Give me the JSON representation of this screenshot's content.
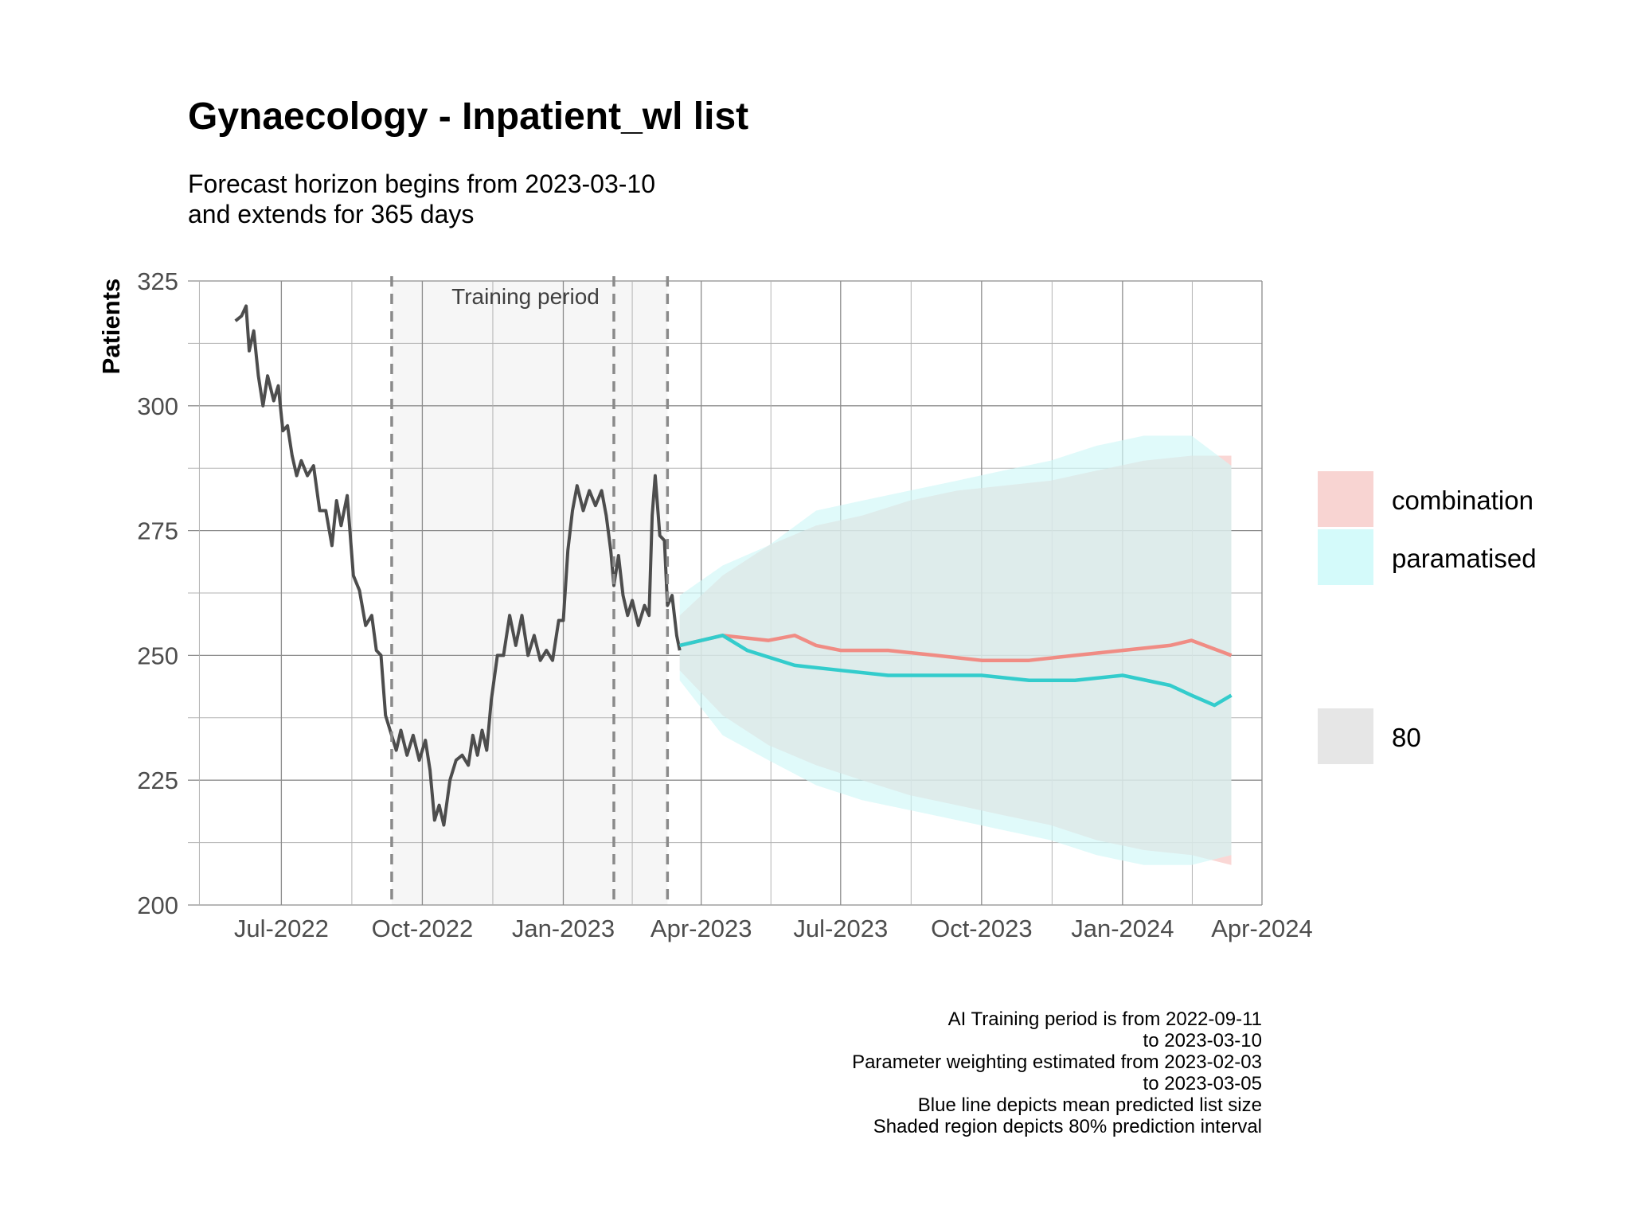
{
  "chart_data": {
    "type": "line",
    "title": "Gynaecology - Inpatient_wl list",
    "subtitle_lines": [
      "Forecast horizon begins from 2023-03-10",
      "and extends for 365 days"
    ],
    "xlabel": "",
    "ylabel": "Patients",
    "xlim": [
      "2022-05-01",
      "2024-04-01"
    ],
    "ylim": [
      200,
      325
    ],
    "y_ticks": [
      200,
      225,
      250,
      275,
      300,
      325
    ],
    "x_ticks": [
      {
        "date": "2022-07-01",
        "label": "Jul-2022"
      },
      {
        "date": "2022-10-01",
        "label": "Oct-2022"
      },
      {
        "date": "2023-01-01",
        "label": "Jan-2023"
      },
      {
        "date": "2023-04-01",
        "label": "Apr-2023"
      },
      {
        "date": "2023-07-01",
        "label": "Jul-2023"
      },
      {
        "date": "2023-10-01",
        "label": "Oct-2023"
      },
      {
        "date": "2024-01-01",
        "label": "Jan-2024"
      },
      {
        "date": "2024-04-01",
        "label": "Apr-2024"
      }
    ],
    "grid": true,
    "training_period": {
      "start": "2022-09-11",
      "end": "2023-03-10",
      "label": "Training period"
    },
    "vlines": [
      "2022-09-11",
      "2023-02-03",
      "2023-03-10"
    ],
    "series": [
      {
        "name": "observed",
        "role": "history",
        "color": "#4d4d4d",
        "points": [
          [
            "2022-06-01",
            317
          ],
          [
            "2022-06-05",
            318
          ],
          [
            "2022-06-08",
            320
          ],
          [
            "2022-06-10",
            311
          ],
          [
            "2022-06-13",
            315
          ],
          [
            "2022-06-16",
            306
          ],
          [
            "2022-06-19",
            300
          ],
          [
            "2022-06-22",
            306
          ],
          [
            "2022-06-26",
            301
          ],
          [
            "2022-06-29",
            304
          ],
          [
            "2022-07-02",
            295
          ],
          [
            "2022-07-05",
            296
          ],
          [
            "2022-07-08",
            290
          ],
          [
            "2022-07-11",
            286
          ],
          [
            "2022-07-14",
            289
          ],
          [
            "2022-07-18",
            286
          ],
          [
            "2022-07-22",
            288
          ],
          [
            "2022-07-26",
            279
          ],
          [
            "2022-07-30",
            279
          ],
          [
            "2022-08-03",
            272
          ],
          [
            "2022-08-06",
            281
          ],
          [
            "2022-08-09",
            276
          ],
          [
            "2022-08-13",
            282
          ],
          [
            "2022-08-17",
            266
          ],
          [
            "2022-08-21",
            263
          ],
          [
            "2022-08-25",
            256
          ],
          [
            "2022-08-29",
            258
          ],
          [
            "2022-09-01",
            251
          ],
          [
            "2022-09-04",
            250
          ],
          [
            "2022-09-07",
            238
          ],
          [
            "2022-09-11",
            234
          ],
          [
            "2022-09-14",
            231
          ],
          [
            "2022-09-17",
            235
          ],
          [
            "2022-09-21",
            230
          ],
          [
            "2022-09-25",
            234
          ],
          [
            "2022-09-29",
            229
          ],
          [
            "2022-10-03",
            233
          ],
          [
            "2022-10-06",
            227
          ],
          [
            "2022-10-09",
            217
          ],
          [
            "2022-10-12",
            220
          ],
          [
            "2022-10-15",
            216
          ],
          [
            "2022-10-19",
            225
          ],
          [
            "2022-10-23",
            229
          ],
          [
            "2022-10-27",
            230
          ],
          [
            "2022-10-31",
            228
          ],
          [
            "2022-11-03",
            234
          ],
          [
            "2022-11-06",
            230
          ],
          [
            "2022-11-09",
            235
          ],
          [
            "2022-11-12",
            231
          ],
          [
            "2022-11-15",
            241
          ],
          [
            "2022-11-19",
            250
          ],
          [
            "2022-11-23",
            250
          ],
          [
            "2022-11-27",
            258
          ],
          [
            "2022-12-01",
            252
          ],
          [
            "2022-12-05",
            258
          ],
          [
            "2022-12-09",
            250
          ],
          [
            "2022-12-13",
            254
          ],
          [
            "2022-12-17",
            249
          ],
          [
            "2022-12-21",
            251
          ],
          [
            "2022-12-25",
            249
          ],
          [
            "2022-12-29",
            257
          ],
          [
            "2023-01-01",
            257
          ],
          [
            "2023-01-04",
            271
          ],
          [
            "2023-01-07",
            279
          ],
          [
            "2023-01-10",
            284
          ],
          [
            "2023-01-14",
            279
          ],
          [
            "2023-01-18",
            283
          ],
          [
            "2023-01-22",
            280
          ],
          [
            "2023-01-26",
            283
          ],
          [
            "2023-01-29",
            278
          ],
          [
            "2023-02-01",
            271
          ],
          [
            "2023-02-03",
            264
          ],
          [
            "2023-02-06",
            270
          ],
          [
            "2023-02-09",
            262
          ],
          [
            "2023-02-12",
            258
          ],
          [
            "2023-02-15",
            261
          ],
          [
            "2023-02-19",
            256
          ],
          [
            "2023-02-23",
            260
          ],
          [
            "2023-02-26",
            258
          ],
          [
            "2023-02-28",
            278
          ],
          [
            "2023-03-02",
            286
          ],
          [
            "2023-03-05",
            274
          ],
          [
            "2023-03-08",
            273
          ],
          [
            "2023-03-10",
            260
          ],
          [
            "2023-03-13",
            262
          ],
          [
            "2023-03-16",
            254
          ],
          [
            "2023-03-18",
            251
          ]
        ]
      },
      {
        "name": "combination",
        "role": "forecast",
        "color": "#f08c84",
        "band_color": "#f8c2bf",
        "points": [
          [
            "2023-03-18",
            252
          ],
          [
            "2023-04-15",
            254
          ],
          [
            "2023-05-15",
            253
          ],
          [
            "2023-06-01",
            254
          ],
          [
            "2023-06-15",
            252
          ],
          [
            "2023-07-01",
            251
          ],
          [
            "2023-08-01",
            251
          ],
          [
            "2023-09-01",
            250
          ],
          [
            "2023-10-01",
            249
          ],
          [
            "2023-11-01",
            249
          ],
          [
            "2023-12-01",
            250
          ],
          [
            "2024-01-01",
            251
          ],
          [
            "2024-02-01",
            252
          ],
          [
            "2024-02-15",
            253
          ],
          [
            "2024-03-12",
            250
          ]
        ],
        "band": [
          [
            "2023-03-18",
            247,
            258
          ],
          [
            "2023-04-15",
            238,
            266
          ],
          [
            "2023-05-15",
            232,
            272
          ],
          [
            "2023-06-15",
            228,
            276
          ],
          [
            "2023-07-15",
            225,
            278
          ],
          [
            "2023-08-15",
            222,
            281
          ],
          [
            "2023-09-15",
            220,
            283
          ],
          [
            "2023-10-15",
            218,
            284
          ],
          [
            "2023-11-15",
            216,
            285
          ],
          [
            "2023-12-15",
            213,
            287
          ],
          [
            "2024-01-15",
            211,
            289
          ],
          [
            "2024-02-15",
            210,
            290
          ],
          [
            "2024-03-12",
            208,
            290
          ]
        ]
      },
      {
        "name": "paramatised",
        "role": "forecast",
        "color": "#33cccc",
        "band_color": "#cff7f7",
        "points": [
          [
            "2023-03-18",
            252
          ],
          [
            "2023-04-15",
            254
          ],
          [
            "2023-05-01",
            251
          ],
          [
            "2023-06-01",
            248
          ],
          [
            "2023-07-01",
            247
          ],
          [
            "2023-08-01",
            246
          ],
          [
            "2023-09-01",
            246
          ],
          [
            "2023-10-01",
            246
          ],
          [
            "2023-11-01",
            245
          ],
          [
            "2023-12-01",
            245
          ],
          [
            "2024-01-01",
            246
          ],
          [
            "2024-02-01",
            244
          ],
          [
            "2024-02-15",
            242
          ],
          [
            "2024-03-01",
            240
          ],
          [
            "2024-03-12",
            242
          ]
        ],
        "band": [
          [
            "2023-03-18",
            245,
            262
          ],
          [
            "2023-04-15",
            234,
            268
          ],
          [
            "2023-05-15",
            229,
            272
          ],
          [
            "2023-06-15",
            224,
            279
          ],
          [
            "2023-07-15",
            221,
            281
          ],
          [
            "2023-08-15",
            219,
            283
          ],
          [
            "2023-09-15",
            217,
            285
          ],
          [
            "2023-10-15",
            215,
            287
          ],
          [
            "2023-11-15",
            213,
            289
          ],
          [
            "2023-12-15",
            210,
            292
          ],
          [
            "2024-01-15",
            208,
            294
          ],
          [
            "2024-02-15",
            208,
            294
          ],
          [
            "2024-03-12",
            210,
            288
          ]
        ]
      }
    ],
    "legend": {
      "placement": "right",
      "items": [
        {
          "label": "combination",
          "color": "#f8d4d2"
        },
        {
          "label": "paramatised",
          "color": "#d4fafa"
        },
        {
          "label": "80",
          "color": "#e6e6e6"
        }
      ]
    },
    "caption_lines": [
      "AI Training period is from 2022-09-11",
      "to 2023-03-10",
      "Parameter weighting estimated from 2023-02-03",
      "to 2023-03-05",
      "Blue line depicts mean predicted list size",
      "Shaded region depicts 80% prediction interval"
    ]
  }
}
